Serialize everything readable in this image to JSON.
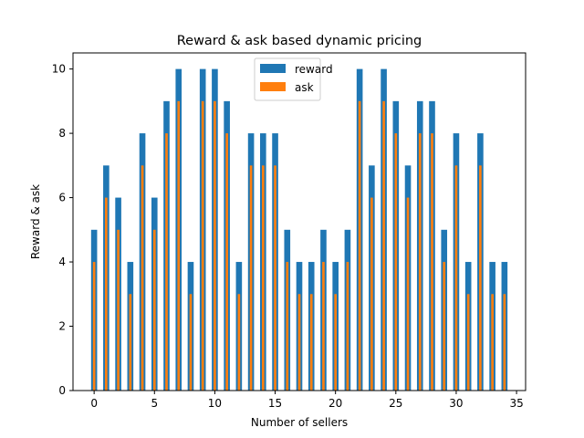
{
  "chart_data": {
    "type": "bar",
    "title": "Reward & ask based dynamic pricing",
    "xlabel": "Number of sellers",
    "ylabel": "Reward & ask",
    "xlim": [
      -1.75,
      35.75
    ],
    "ylim": [
      0,
      10.5
    ],
    "xticks": [
      0,
      5,
      10,
      15,
      20,
      25,
      30,
      35
    ],
    "yticks": [
      0,
      2,
      4,
      6,
      8,
      10
    ],
    "grid": false,
    "legend_position": "top-center",
    "x": [
      0,
      1,
      2,
      3,
      4,
      5,
      6,
      7,
      8,
      9,
      10,
      11,
      12,
      13,
      14,
      15,
      16,
      17,
      18,
      19,
      20,
      21,
      22,
      23,
      24,
      25,
      26,
      27,
      28,
      29,
      30,
      31,
      32,
      33,
      34
    ],
    "series": [
      {
        "name": "reward",
        "color": "#1f77b4",
        "bar_width": 0.5,
        "values": [
          5,
          7,
          6,
          4,
          8,
          6,
          9,
          10,
          4,
          10,
          10,
          9,
          4,
          8,
          8,
          8,
          5,
          4,
          4,
          5,
          4,
          5,
          10,
          7,
          10,
          9,
          7,
          9,
          9,
          5,
          8,
          4,
          8,
          4,
          4
        ]
      },
      {
        "name": "ask",
        "color": "#ff7f0e",
        "bar_width": 0.2,
        "values": [
          4,
          6,
          5,
          3,
          7,
          5,
          8,
          9,
          3,
          9,
          9,
          8,
          3,
          7,
          7,
          7,
          4,
          3,
          3,
          4,
          3,
          4,
          9,
          6,
          9,
          8,
          6,
          8,
          8,
          4,
          7,
          3,
          7,
          3,
          3
        ]
      }
    ]
  }
}
